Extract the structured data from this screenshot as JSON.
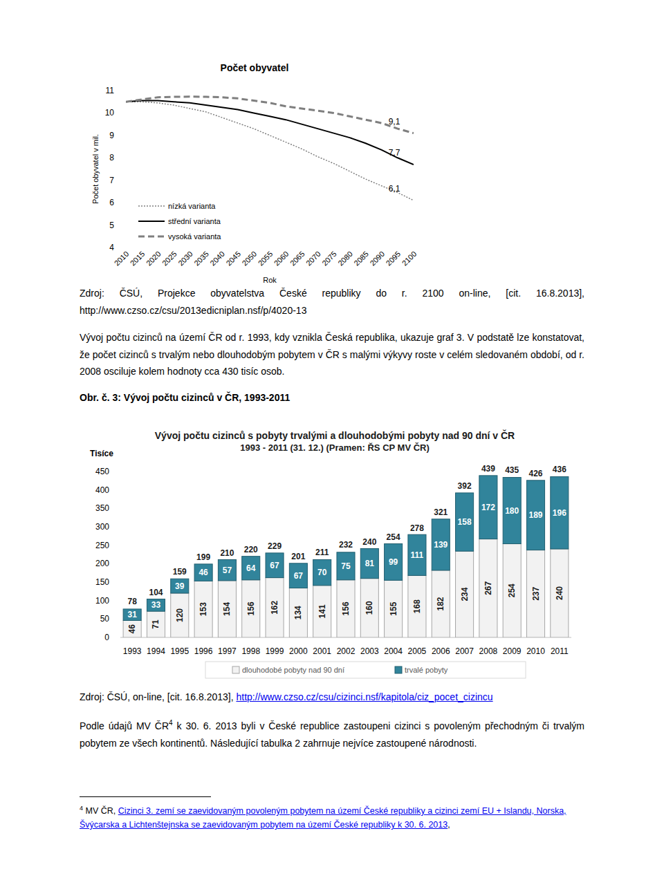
{
  "document": {
    "source_1": "Zdroj: ČSÚ, Projekce obyvatelstva České republiky do r. 2100 on-line, [cit. 16.8.2013], http://www.czso.cz/csu/2013edicniplan.nsf/p/4020-13",
    "paragraph_1": "Vývoj počtu cizinců na území ČR od r. 1993, kdy vznikla Česká republika, ukazuje graf 3. V podstatě lze konstatovat, že počet cizinců s trvalým nebo dlouhodobým pobytem v ČR s malými výkyvy roste v celém sledovaném období, od r. 2008 osciluje kolem hodnoty cca 430 tisíc osob.",
    "figure_caption": "Obr. č. 3: Vývoj počtu cizinců v ČR, 1993-2011",
    "source_2": {
      "text": "Zdroj: ČSÚ, on-line, [cit. 16.8.2013], ",
      "link": "http://www.czso.cz/csu/cizinci.nsf/kapitola/ciz_pocet_cizincu"
    },
    "paragraph_2": {
      "before": "Podle údajů MV ČR",
      "note_ref": "4",
      "after": " k 30. 6. 2013 byli v České republice zastoupeni cizinci s povoleným přechodným či trvalým pobytem ze všech kontinentů. Následující tabulka 2 zahrnuje nejvíce zastoupené národnosti."
    },
    "footnote": {
      "marker": "4",
      "text": "MV ČR, ",
      "link": "Cizinci 3. zemí se zaevidovaným povoleným pobytem na území České republiky a cizinci zemí EU + Islandu, Norska, Švýcarska a Lichtenštejnska se zaevidovaným pobytem na území České republiky k 30. 6. 2013",
      "after": ","
    }
  },
  "chart_data": [
    {
      "type": "line",
      "title": "Počet obyvatel",
      "x_label": "Rok",
      "y_label": "Počet obyvatel v mil.",
      "x": [
        2010,
        2015,
        2020,
        2025,
        2030,
        2035,
        2040,
        2045,
        2050,
        2055,
        2060,
        2065,
        2070,
        2075,
        2080,
        2085,
        2090,
        2095,
        2100
      ],
      "series": [
        {
          "name": "nízká varianta",
          "color": "#7f7f7f",
          "line_style": "dotted",
          "values": [
            10.5,
            10.5,
            10.45,
            10.35,
            10.2,
            10.05,
            9.8,
            9.55,
            9.3,
            9.0,
            8.7,
            8.4,
            8.05,
            7.75,
            7.4,
            7.05,
            6.75,
            6.45,
            6.1
          ]
        },
        {
          "name": "střední varianta",
          "color": "#000000",
          "line_style": "solid",
          "values": [
            10.5,
            10.55,
            10.55,
            10.5,
            10.45,
            10.35,
            10.25,
            10.15,
            10.0,
            9.85,
            9.7,
            9.5,
            9.3,
            9.1,
            8.9,
            8.65,
            8.35,
            8.0,
            7.7
          ]
        },
        {
          "name": "vysoká varianta",
          "color": "#7f7f7f",
          "line_style": "dashed",
          "values": [
            10.5,
            10.6,
            10.7,
            10.72,
            10.73,
            10.72,
            10.7,
            10.65,
            10.55,
            10.45,
            10.3,
            10.2,
            10.1,
            10.0,
            9.85,
            9.7,
            9.55,
            9.3,
            9.1
          ]
        }
      ],
      "annotations": [
        {
          "text": "9,1",
          "x": 2100,
          "y": 9.1
        },
        {
          "text": "7,7",
          "x": 2100,
          "y": 7.7
        },
        {
          "text": "6,1",
          "x": 2100,
          "y": 6.1
        }
      ],
      "xlim": [
        2010,
        2100
      ],
      "xticks": [
        2010,
        2015,
        2020,
        2025,
        2030,
        2035,
        2040,
        2045,
        2050,
        2055,
        2060,
        2065,
        2070,
        2075,
        2080,
        2085,
        2090,
        2095,
        2100
      ],
      "ylim": [
        4,
        11
      ],
      "yticks": [
        4,
        5,
        6,
        7,
        8,
        9,
        10,
        11
      ],
      "grid": false,
      "legend": "lower left"
    },
    {
      "type": "bar",
      "stacked": true,
      "data_labels": true,
      "title": "Vývoj počtu cizinců s pobyty trvalými a dlouhodobými pobyty nad 90 dní v ČR",
      "subtitle": "1993 - 2011 (31. 12.) (Pramen: ŘS CP MV ČR)",
      "y_label": "Tisíce",
      "categories": [
        "1993",
        "1994",
        "1995",
        "1996",
        "1997",
        "1998",
        "1999",
        "2000",
        "2001",
        "2002",
        "2003",
        "2004",
        "2005",
        "2006",
        "2007",
        "2008",
        "2009",
        "2010",
        "2011"
      ],
      "series": [
        {
          "name": "dlouhodobé pobyty nad 90 dní",
          "color": "#f2f2f2",
          "values": [
            46,
            71,
            120,
            153,
            154,
            156,
            162,
            134,
            141,
            156,
            160,
            155,
            168,
            182,
            234,
            267,
            254,
            237,
            240
          ]
        },
        {
          "name": "trvalé pobyty",
          "color": "#31849b",
          "values": [
            31,
            33,
            39,
            46,
            57,
            64,
            67,
            67,
            70,
            75,
            81,
            99,
            111,
            139,
            158,
            172,
            180,
            189,
            196
          ]
        }
      ],
      "totals": [
        78,
        104,
        159,
        199,
        210,
        220,
        229,
        201,
        211,
        232,
        240,
        254,
        278,
        321,
        392,
        439,
        435,
        426,
        436
      ],
      "ylim": [
        0,
        450
      ],
      "yticks": [
        0,
        50,
        100,
        150,
        200,
        250,
        300,
        350,
        400,
        450
      ],
      "grid": false,
      "legend": "bottom"
    }
  ]
}
